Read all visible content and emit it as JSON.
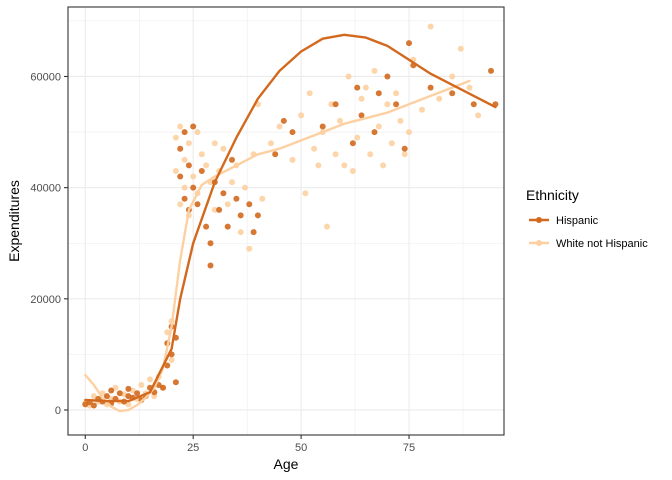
{
  "chart_data": {
    "type": "scatter",
    "xlabel": "Age",
    "ylabel": "Expenditures",
    "xlim": [
      -4,
      97
    ],
    "ylim": [
      -4500,
      72500
    ],
    "x_ticks": [
      0,
      25,
      50,
      75
    ],
    "y_ticks": [
      0,
      20000,
      40000,
      60000
    ],
    "x_tick_labels": [
      "0",
      "25",
      "50",
      "75"
    ],
    "y_tick_labels": [
      "0",
      "20000",
      "40000",
      "60000"
    ],
    "grid": true,
    "legend": {
      "title": "Ethnicity",
      "position": "right",
      "entries": [
        "Hispanic",
        "White not Hispanic"
      ]
    },
    "series": [
      {
        "name": "Hispanic",
        "color": "#d2691e",
        "points": [
          [
            0,
            1000
          ],
          [
            1,
            1400
          ],
          [
            2,
            800
          ],
          [
            3,
            2000
          ],
          [
            4,
            1500
          ],
          [
            5,
            2500
          ],
          [
            6,
            3500
          ],
          [
            6,
            1200
          ],
          [
            7,
            2000
          ],
          [
            8,
            3000
          ],
          [
            9,
            1500
          ],
          [
            10,
            2500
          ],
          [
            10,
            3800
          ],
          [
            11,
            2200
          ],
          [
            12,
            3000
          ],
          [
            13,
            1800
          ],
          [
            14,
            2500
          ],
          [
            15,
            4000
          ],
          [
            16,
            3200
          ],
          [
            17,
            4500
          ],
          [
            18,
            4000
          ],
          [
            19,
            8000
          ],
          [
            19,
            12000
          ],
          [
            20,
            10000
          ],
          [
            20,
            15000
          ],
          [
            21,
            13000
          ],
          [
            21,
            5000
          ],
          [
            22,
            42000
          ],
          [
            22,
            47000
          ],
          [
            23,
            38000
          ],
          [
            23,
            50000
          ],
          [
            24,
            44000
          ],
          [
            24,
            36000
          ],
          [
            25,
            51000
          ],
          [
            25,
            40000
          ],
          [
            26,
            37000
          ],
          [
            27,
            43000
          ],
          [
            28,
            33000
          ],
          [
            29,
            26000
          ],
          [
            29,
            30000
          ],
          [
            30,
            41000
          ],
          [
            31,
            36000
          ],
          [
            32,
            39000
          ],
          [
            33,
            33000
          ],
          [
            34,
            45000
          ],
          [
            35,
            38000
          ],
          [
            36,
            35000
          ],
          [
            38,
            37000
          ],
          [
            39,
            32000
          ],
          [
            40,
            35000
          ],
          [
            44,
            46000
          ],
          [
            46,
            52000
          ],
          [
            48,
            50000
          ],
          [
            55,
            51000
          ],
          [
            58,
            55000
          ],
          [
            62,
            48000
          ],
          [
            63,
            58000
          ],
          [
            64,
            53000
          ],
          [
            67,
            50000
          ],
          [
            68,
            57000
          ],
          [
            70,
            60000
          ],
          [
            72,
            55000
          ],
          [
            74,
            47000
          ],
          [
            75,
            66000
          ],
          [
            76,
            62000
          ],
          [
            80,
            58000
          ],
          [
            85,
            57000
          ],
          [
            90,
            55000
          ],
          [
            94,
            61000
          ],
          [
            95,
            55000
          ]
        ],
        "trend": [
          [
            0,
            1800
          ],
          [
            5,
            1600
          ],
          [
            10,
            1600
          ],
          [
            15,
            3200
          ],
          [
            20,
            11000
          ],
          [
            22,
            20000
          ],
          [
            25,
            30000
          ],
          [
            30,
            41000
          ],
          [
            35,
            49000
          ],
          [
            40,
            56000
          ],
          [
            45,
            61000
          ],
          [
            50,
            64500
          ],
          [
            55,
            66800
          ],
          [
            60,
            67500
          ],
          [
            65,
            67000
          ],
          [
            70,
            65500
          ],
          [
            75,
            63000
          ],
          [
            80,
            60500
          ],
          [
            85,
            58500
          ],
          [
            90,
            56500
          ],
          [
            95,
            54500
          ]
        ]
      },
      {
        "name": "White not Hispanic",
        "color": "#fdd0a2",
        "points": [
          [
            0,
            1200
          ],
          [
            1,
            800
          ],
          [
            2,
            2500
          ],
          [
            3,
            1500
          ],
          [
            4,
            3000
          ],
          [
            5,
            1000
          ],
          [
            6,
            2000
          ],
          [
            7,
            4000
          ],
          [
            8,
            1500
          ],
          [
            9,
            2800
          ],
          [
            10,
            1000
          ],
          [
            11,
            3500
          ],
          [
            12,
            2000
          ],
          [
            13,
            4500
          ],
          [
            14,
            3000
          ],
          [
            15,
            5500
          ],
          [
            16,
            2500
          ],
          [
            17,
            6000
          ],
          [
            18,
            4000
          ],
          [
            19,
            14000
          ],
          [
            20,
            9000
          ],
          [
            20,
            16000
          ],
          [
            21,
            49000
          ],
          [
            21,
            43000
          ],
          [
            22,
            51000
          ],
          [
            22,
            37000
          ],
          [
            23,
            45000
          ],
          [
            23,
            40000
          ],
          [
            24,
            48000
          ],
          [
            24,
            35000
          ],
          [
            25,
            42000
          ],
          [
            26,
            50000
          ],
          [
            26,
            39000
          ],
          [
            27,
            46000
          ],
          [
            28,
            44000
          ],
          [
            29,
            41000
          ],
          [
            30,
            48000
          ],
          [
            30,
            36000
          ],
          [
            31,
            43000
          ],
          [
            32,
            47000
          ],
          [
            33,
            37000
          ],
          [
            34,
            41000
          ],
          [
            35,
            44000
          ],
          [
            36,
            32000
          ],
          [
            37,
            40000
          ],
          [
            38,
            29000
          ],
          [
            39,
            46000
          ],
          [
            40,
            55000
          ],
          [
            41,
            38000
          ],
          [
            43,
            48000
          ],
          [
            45,
            51000
          ],
          [
            48,
            45000
          ],
          [
            50,
            53000
          ],
          [
            51,
            39000
          ],
          [
            52,
            57000
          ],
          [
            53,
            47000
          ],
          [
            54,
            44000
          ],
          [
            55,
            50000
          ],
          [
            56,
            33000
          ],
          [
            57,
            55000
          ],
          [
            58,
            46000
          ],
          [
            59,
            52000
          ],
          [
            60,
            44000
          ],
          [
            61,
            60000
          ],
          [
            62,
            43000
          ],
          [
            63,
            49000
          ],
          [
            64,
            56000
          ],
          [
            65,
            58000
          ],
          [
            66,
            46000
          ],
          [
            67,
            61000
          ],
          [
            68,
            51000
          ],
          [
            69,
            44000
          ],
          [
            70,
            55000
          ],
          [
            71,
            48000
          ],
          [
            72,
            57000
          ],
          [
            73,
            52000
          ],
          [
            74,
            46000
          ],
          [
            75,
            50000
          ],
          [
            76,
            63000
          ],
          [
            78,
            54000
          ],
          [
            80,
            69000
          ],
          [
            82,
            56000
          ],
          [
            85,
            60000
          ],
          [
            87,
            65000
          ],
          [
            89,
            58000
          ],
          [
            91,
            53000
          ]
        ],
        "trend": [
          [
            0,
            6300
          ],
          [
            2,
            4500
          ],
          [
            4,
            2200
          ],
          [
            6,
            600
          ],
          [
            8,
            -200
          ],
          [
            10,
            0
          ],
          [
            12,
            900
          ],
          [
            14,
            2200
          ],
          [
            16,
            4000
          ],
          [
            18,
            7500
          ],
          [
            20,
            15000
          ],
          [
            22,
            27000
          ],
          [
            24,
            36000
          ],
          [
            27,
            40500
          ],
          [
            30,
            42000
          ],
          [
            35,
            44000
          ],
          [
            40,
            46000
          ],
          [
            45,
            47000
          ],
          [
            50,
            48500
          ],
          [
            55,
            50000
          ],
          [
            60,
            51500
          ],
          [
            65,
            52500
          ],
          [
            70,
            53500
          ],
          [
            75,
            55000
          ],
          [
            80,
            56500
          ],
          [
            85,
            58000
          ],
          [
            89,
            59200
          ]
        ]
      }
    ]
  }
}
